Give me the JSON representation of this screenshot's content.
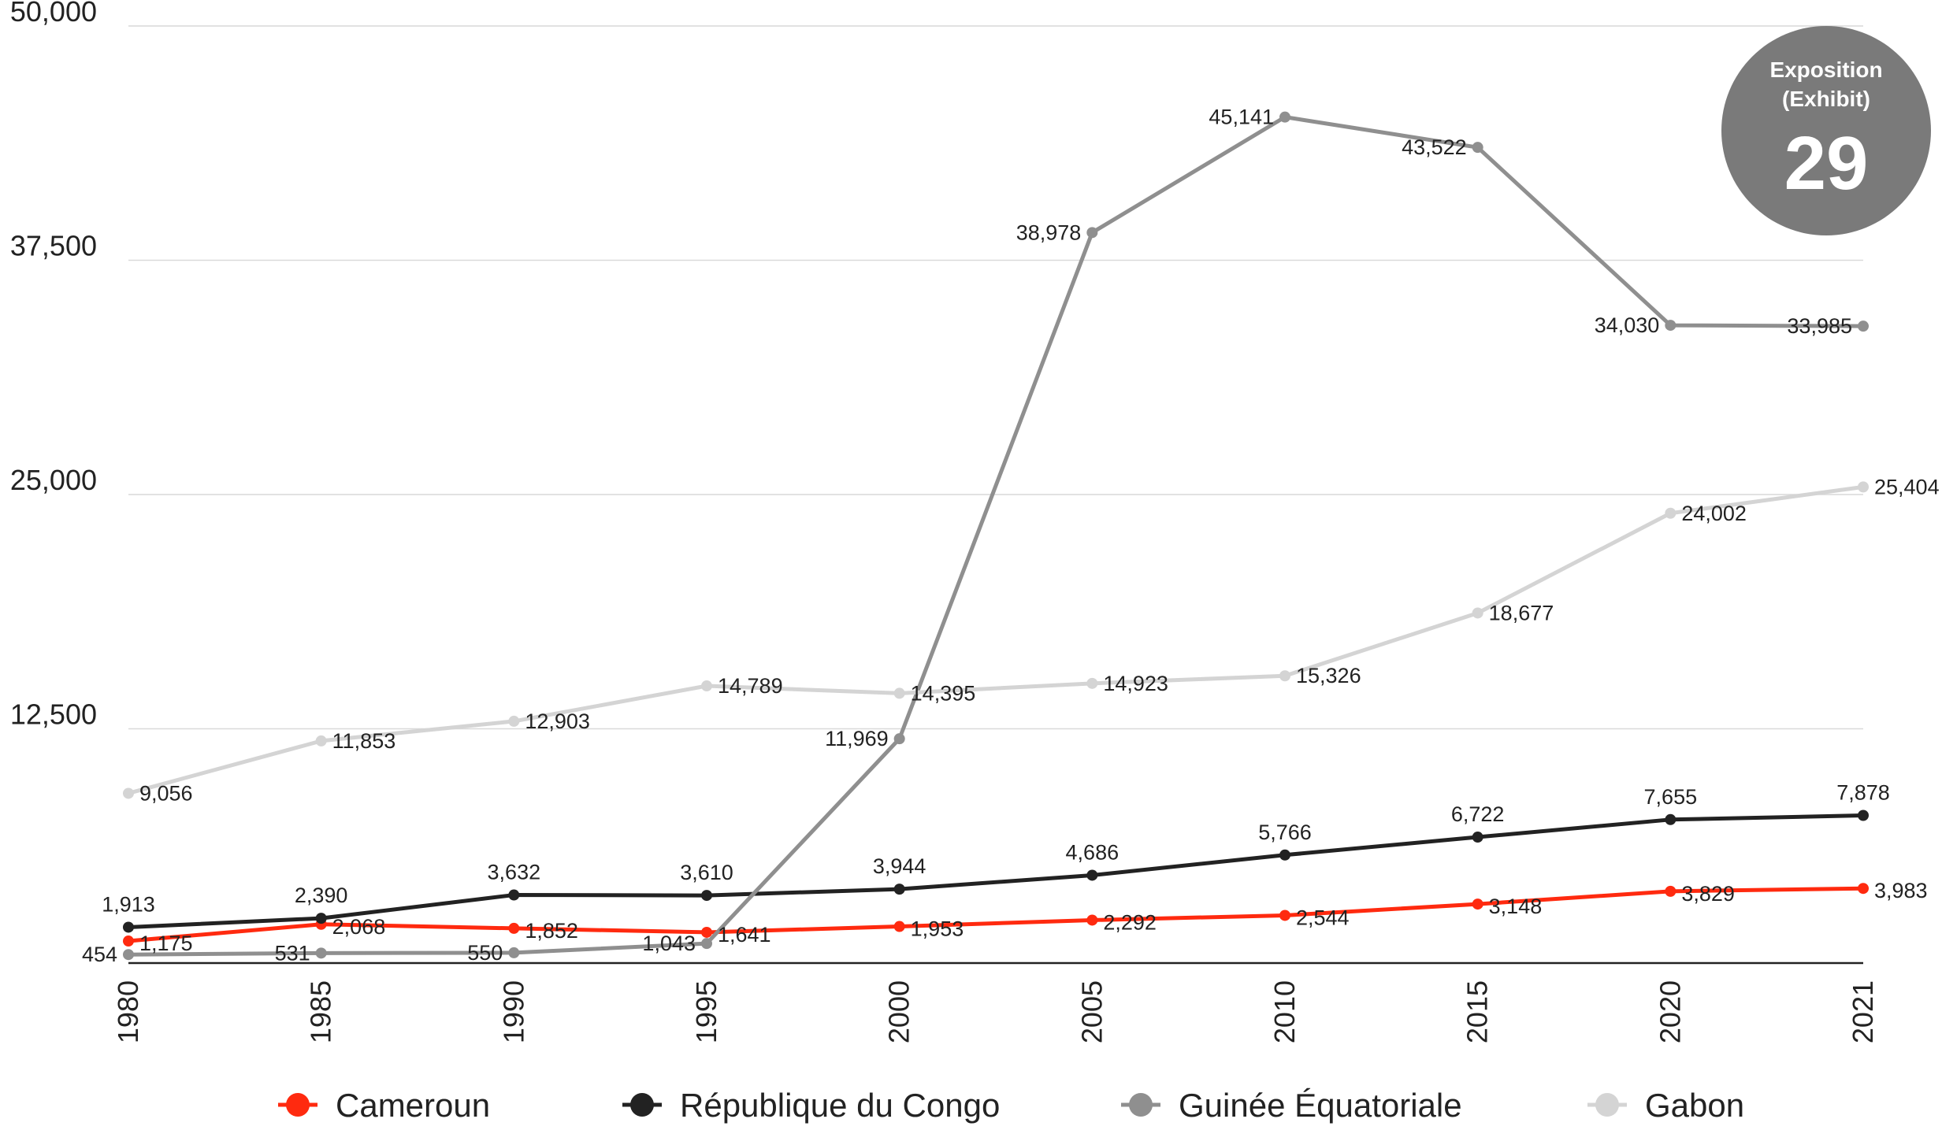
{
  "chart_data": {
    "type": "line",
    "title": "",
    "xlabel": "",
    "ylabel": "",
    "x": [
      "1980",
      "1985",
      "1990",
      "1995",
      "2000",
      "2005",
      "2010",
      "2015",
      "2020",
      "2021"
    ],
    "ylim": [
      0,
      50000
    ],
    "yticks": [
      12500,
      25000,
      37500,
      50000
    ],
    "ytick_labels": [
      "12,500",
      "25,000",
      "37,500",
      "50,000"
    ],
    "grid": true,
    "legend_position": "bottom",
    "series": [
      {
        "name": "Cameroun",
        "color": "#ff2a0f",
        "values": [
          1175,
          2068,
          1852,
          1641,
          1953,
          2292,
          2544,
          3148,
          3829,
          3983
        ],
        "labels": [
          "1,175",
          "2,068",
          "1,852",
          "1,641",
          "1,953",
          "2,292",
          "2,544",
          "3,148",
          "3,829",
          "3,983"
        ]
      },
      {
        "name": "République du Congo",
        "color": "#222222",
        "values": [
          1913,
          2390,
          3632,
          3610,
          3944,
          4686,
          5766,
          6722,
          7655,
          7878
        ],
        "labels": [
          "1,913",
          "2,390",
          "3,632",
          "3,610",
          "3,944",
          "4,686",
          "5,766",
          "6,722",
          "7,655",
          "7,878"
        ]
      },
      {
        "name": "Guinée Équatoriale",
        "color": "#8f8f8f",
        "values": [
          454,
          531,
          550,
          1043,
          11969,
          38978,
          45141,
          43522,
          34030,
          33985
        ],
        "labels": [
          "454",
          "531",
          "550",
          "1,043",
          "11,969",
          "38,978",
          "45,141",
          "43,522",
          "34,030",
          "33,985"
        ]
      },
      {
        "name": "Gabon",
        "color": "#d4d4d4",
        "values": [
          9056,
          11853,
          12903,
          14789,
          14395,
          14923,
          15326,
          18677,
          24002,
          25404
        ],
        "labels": [
          "9,056",
          "11,853",
          "12,903",
          "14,789",
          "14,395",
          "14,923",
          "15,326",
          "18,677",
          "24,002",
          "25,404"
        ]
      }
    ],
    "badge": {
      "line1": "Exposition",
      "line2": "(Exhibit)",
      "number": "29",
      "color": "#7a7a7a"
    }
  }
}
